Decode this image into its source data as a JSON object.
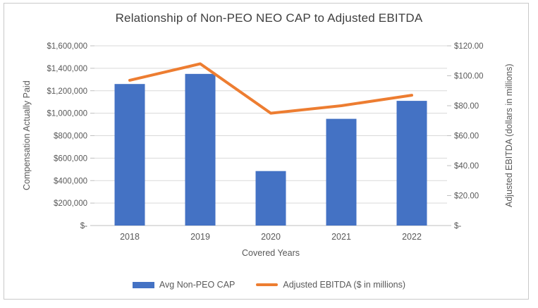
{
  "chart_data": {
    "type": "combo",
    "title": "Relationship of Non-PEO NEO CAP to Adjusted EBITDA",
    "categories": [
      "2018",
      "2019",
      "2020",
      "2021",
      "2022"
    ],
    "series": [
      {
        "name": "Avg Non-PEO CAP",
        "render": "bar",
        "axis": "left",
        "color": "#4472C4",
        "values": [
          1260000,
          1350000,
          485000,
          950000,
          1110000
        ]
      },
      {
        "name": "Adjusted EBITDA ($ in millions)",
        "render": "line",
        "axis": "right",
        "color": "#ED7D31",
        "values": [
          97,
          108,
          75,
          80,
          87
        ]
      }
    ],
    "xlabel": "Covered Years",
    "ylabel_left": "Compensation Actually Paid",
    "ylabel_right": "Adjusted EBITDA (dollars in millions)",
    "ylim_left": [
      0,
      1600000
    ],
    "ylim_right": [
      0,
      120
    ],
    "left_ticks": [
      "$1,600,000",
      "$1,400,000",
      "$1,200,000",
      "$1,000,000",
      "$800,000",
      "$600,000",
      "$400,000",
      "$200,000",
      "$-"
    ],
    "right_ticks": [
      "$120.00",
      "$100.00",
      "$80.00",
      "$60.00",
      "$40.00",
      "$20.00",
      "$-"
    ],
    "grid": true,
    "legend_position": "bottom"
  },
  "colors": {
    "bar": "#4472C4",
    "line": "#ED7D31",
    "gridline": "#D9D9D9",
    "axis_line": "#BFBFBF",
    "tick_text": "#595959",
    "title_text": "#404040",
    "frame_border": "#C9C9C9"
  }
}
